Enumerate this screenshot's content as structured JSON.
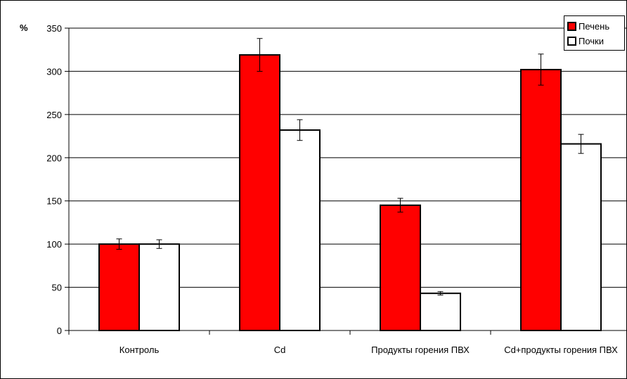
{
  "chart_data": {
    "type": "bar",
    "ylabel": "%",
    "ylim": [
      0,
      350
    ],
    "yticks": [
      0,
      50,
      100,
      150,
      200,
      250,
      300,
      350
    ],
    "grid": true,
    "legend_position": "top-right",
    "categories": [
      "Контроль",
      "Cd",
      "Продукты горения ПВХ",
      "Cd+продукты горения ПВХ"
    ],
    "series": [
      {
        "name": "Печень",
        "values": [
          100,
          319,
          145,
          302
        ],
        "errors": [
          6,
          19,
          8,
          18
        ],
        "color": "#ff0000"
      },
      {
        "name": "Почки",
        "values": [
          100,
          232,
          43,
          216
        ],
        "errors": [
          5,
          12,
          2,
          11
        ],
        "color": "#ffffff"
      }
    ]
  }
}
